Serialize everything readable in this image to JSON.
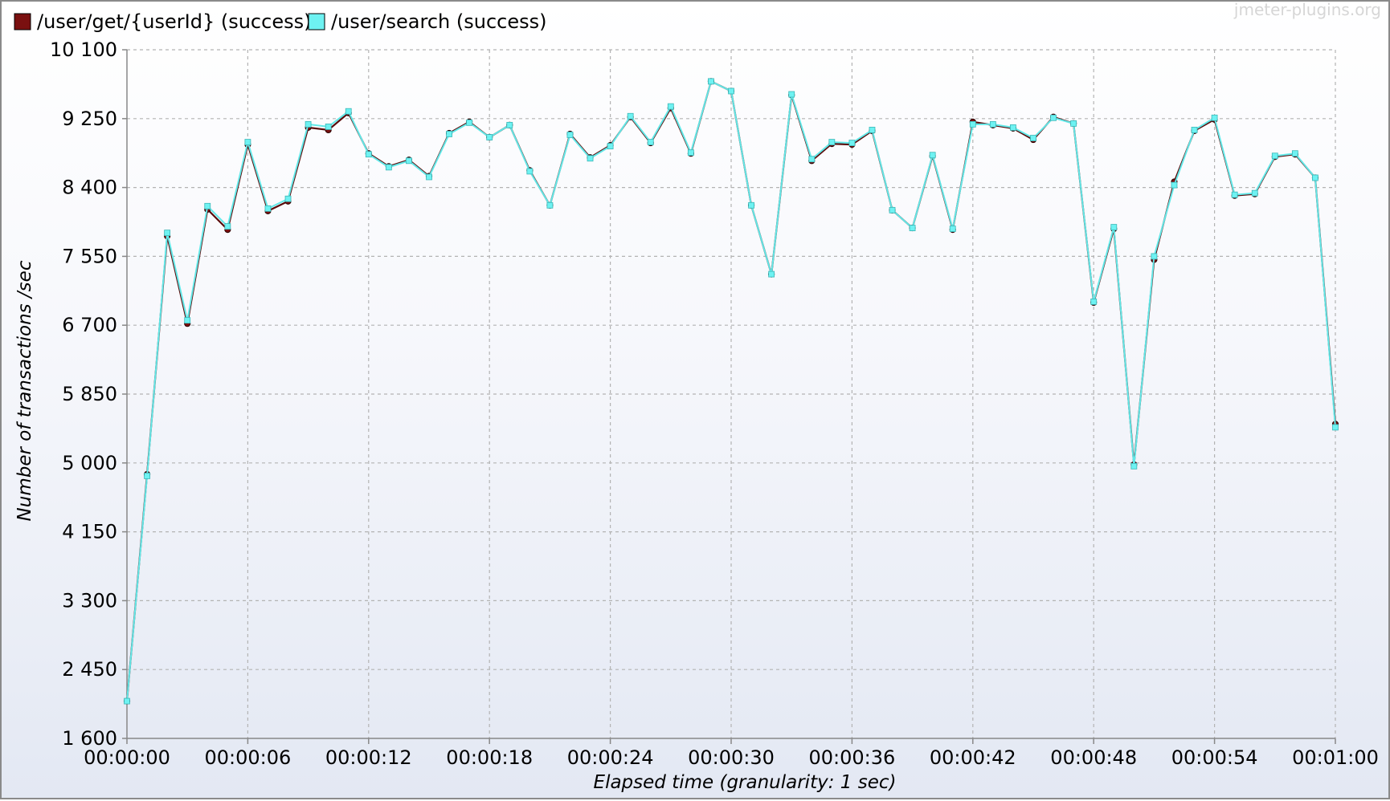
{
  "watermark": "jmeter-plugins.org",
  "chart_data": {
    "type": "line",
    "title": "",
    "xlabel": "Elapsed time (granularity: 1 sec)",
    "ylabel": "Number of transactions /sec",
    "ylim": [
      1600,
      10100
    ],
    "xlim": [
      0,
      60
    ],
    "y_ticks": [
      1600,
      2450,
      3300,
      4150,
      5000,
      5850,
      6700,
      7550,
      8400,
      9250,
      10100
    ],
    "y_tick_labels": [
      "1 600",
      "2 450",
      "3 300",
      "4 150",
      "5 000",
      "5 850",
      "6 700",
      "7 550",
      "8 400",
      "9 250",
      "10 100"
    ],
    "x_ticks": [
      0,
      6,
      12,
      18,
      24,
      30,
      36,
      42,
      48,
      54,
      60
    ],
    "x_tick_labels": [
      "00:00:00",
      "00:00:06",
      "00:00:12",
      "00:00:18",
      "00:00:24",
      "00:00:30",
      "00:00:36",
      "00:00:42",
      "00:00:48",
      "00:00:54",
      "00:01:00"
    ],
    "grid": true,
    "legend_position": "top-left",
    "x": [
      0,
      1,
      2,
      3,
      4,
      5,
      6,
      7,
      8,
      9,
      10,
      11,
      12,
      13,
      14,
      15,
      16,
      17,
      18,
      19,
      20,
      21,
      22,
      23,
      24,
      25,
      26,
      27,
      28,
      29,
      30,
      31,
      32,
      33,
      34,
      35,
      36,
      37,
      38,
      39,
      40,
      41,
      42,
      43,
      44,
      45,
      46,
      47,
      48,
      49,
      50,
      51,
      52,
      53,
      54,
      55,
      56,
      57,
      58,
      59,
      60
    ],
    "series": [
      {
        "name": "/user/get/{userId} (success)",
        "color": "#7a1010",
        "marker": "circle",
        "values": [
          2060,
          4860,
          7800,
          6720,
          8130,
          7880,
          8930,
          8110,
          8230,
          9140,
          9110,
          9320,
          8820,
          8660,
          8740,
          8540,
          9070,
          9210,
          9020,
          9170,
          8610,
          8180,
          9060,
          8770,
          8920,
          9270,
          8950,
          9380,
          8820,
          9710,
          9590,
          8180,
          7330,
          9540,
          8730,
          8940,
          8930,
          9100,
          8120,
          7900,
          8790,
          7880,
          9210,
          9170,
          9130,
          8990,
          9270,
          9190,
          6980,
          7890,
          4980,
          7510,
          8470,
          9100,
          9240,
          8300,
          8320,
          8780,
          8810,
          8520,
          5480
        ]
      },
      {
        "name": "/user/search (success)",
        "color": "#6ef2f2",
        "marker": "square",
        "values": [
          2060,
          4840,
          7840,
          6760,
          8170,
          7920,
          8960,
          8140,
          8260,
          9180,
          9150,
          9340,
          8810,
          8650,
          8730,
          8530,
          9060,
          9200,
          9020,
          9170,
          8600,
          8180,
          9050,
          8760,
          8910,
          9280,
          8960,
          9400,
          8830,
          9710,
          9590,
          8180,
          7330,
          9550,
          8750,
          8960,
          8950,
          9110,
          8120,
          7900,
          8800,
          7890,
          9180,
          9180,
          9140,
          9010,
          9260,
          9190,
          6990,
          7910,
          4960,
          7550,
          8430,
          9110,
          9260,
          8310,
          8330,
          8790,
          8820,
          8520,
          5440
        ]
      }
    ]
  }
}
